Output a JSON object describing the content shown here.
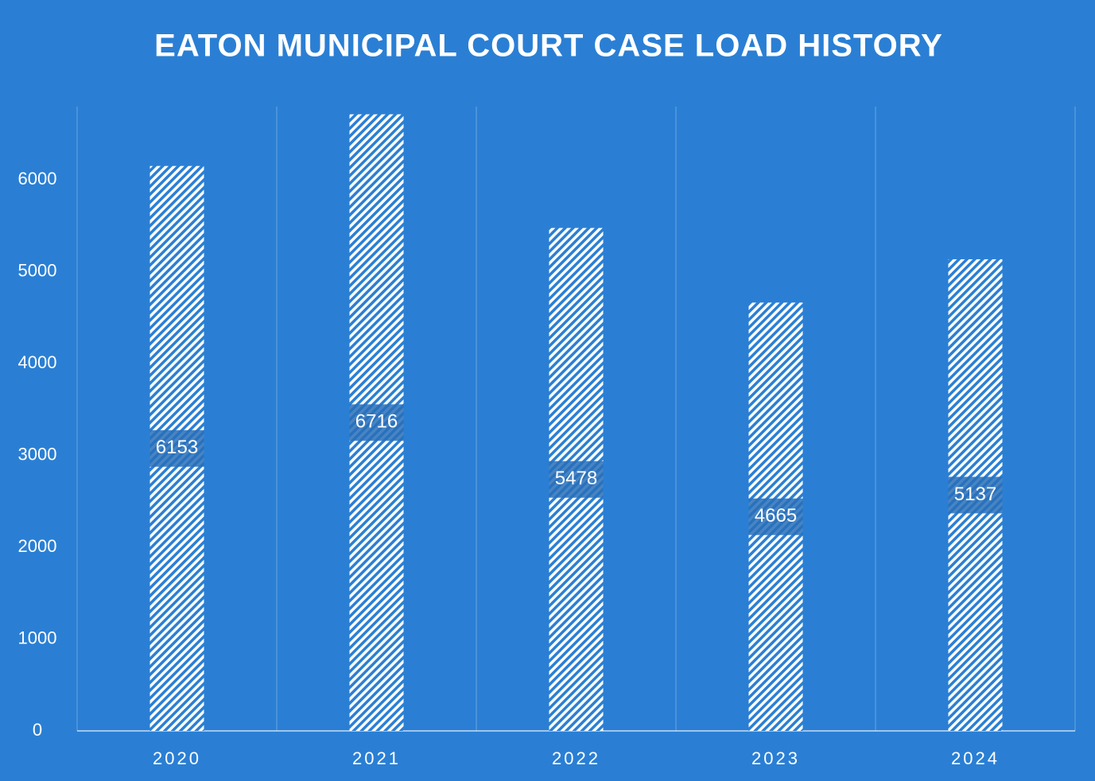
{
  "chart_data": {
    "type": "bar",
    "title": "EATON MUNICIPAL COURT CASE LOAD HISTORY",
    "categories": [
      "2020",
      "2021",
      "2022",
      "2023",
      "2024"
    ],
    "values": [
      6153,
      6716,
      5478,
      4665,
      5137
    ],
    "color": "#ffffff",
    "ylim": [
      0,
      6800
    ],
    "yticks": [
      0,
      1000,
      2000,
      3000,
      4000,
      5000,
      6000
    ],
    "grid": false
  }
}
